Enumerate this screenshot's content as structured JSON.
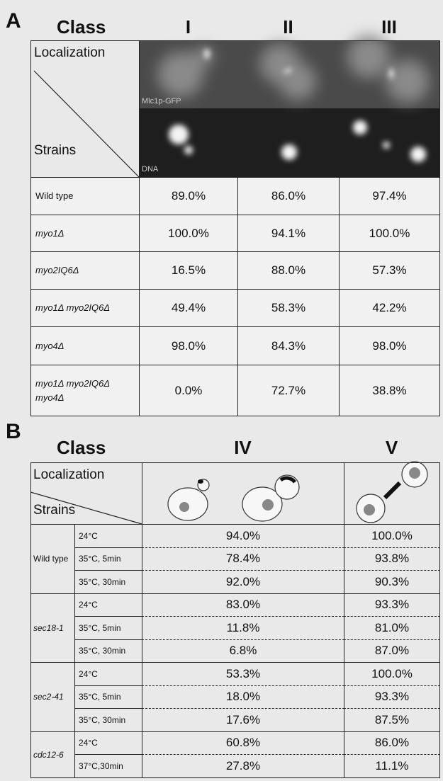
{
  "panel_a": {
    "label": "A",
    "class_label": "Class",
    "columns": [
      "I",
      "II",
      "III"
    ],
    "localization_label": "Localization",
    "strains_label": "Strains",
    "image_labels": [
      "Mlc1p-GFP",
      "DNA"
    ],
    "rows": [
      {
        "strain": "Wild type",
        "values": [
          "89.0%",
          "86.0%",
          "97.4%"
        ]
      },
      {
        "strain": "myo1Δ",
        "values": [
          "100.0%",
          "94.1%",
          "100.0%"
        ]
      },
      {
        "strain": "myo2IQ6Δ",
        "values": [
          "16.5%",
          "88.0%",
          "57.3%"
        ]
      },
      {
        "strain": "myo1Δ myo2IQ6Δ",
        "values": [
          "49.4%",
          "58.3%",
          "42.2%"
        ]
      },
      {
        "strain": "myo4Δ",
        "values": [
          "98.0%",
          "84.3%",
          "98.0%"
        ]
      },
      {
        "strain": "myo1Δ myo2IQ6Δ myo4Δ",
        "values": [
          "0.0%",
          "72.7%",
          "38.8%"
        ]
      }
    ]
  },
  "panel_b": {
    "label": "B",
    "class_label": "Class",
    "columns": [
      "IV",
      "V"
    ],
    "localization_label": "Localization",
    "strains_label": "Strains",
    "groups": [
      {
        "strain": "Wild type",
        "rows": [
          {
            "condition": "24°C",
            "values": [
              "94.0%",
              "100.0%"
            ]
          },
          {
            "condition": "35°C, 5min",
            "values": [
              "78.4%",
              "93.8%"
            ]
          },
          {
            "condition": "35°C, 30min",
            "values": [
              "92.0%",
              "90.3%"
            ]
          }
        ]
      },
      {
        "strain": "sec18-1",
        "rows": [
          {
            "condition": "24°C",
            "values": [
              "83.0%",
              "93.3%"
            ]
          },
          {
            "condition": "35°C, 5min",
            "values": [
              "11.8%",
              "81.0%"
            ]
          },
          {
            "condition": "35°C, 30min",
            "values": [
              "6.8%",
              "87.0%"
            ]
          }
        ]
      },
      {
        "strain": "sec2-41",
        "rows": [
          {
            "condition": "24°C",
            "values": [
              "53.3%",
              "100.0%"
            ]
          },
          {
            "condition": "35°C, 5min",
            "values": [
              "18.0%",
              "93.3%"
            ]
          },
          {
            "condition": "35°C, 30min",
            "values": [
              "17.6%",
              "87.5%"
            ]
          }
        ]
      },
      {
        "strain": "cdc12-6",
        "rows": [
          {
            "condition": "24°C",
            "values": [
              "60.8%",
              "86.0%"
            ]
          },
          {
            "condition": "37°C,30min",
            "values": [
              "27.8%",
              "11.1%"
            ]
          }
        ]
      }
    ]
  }
}
